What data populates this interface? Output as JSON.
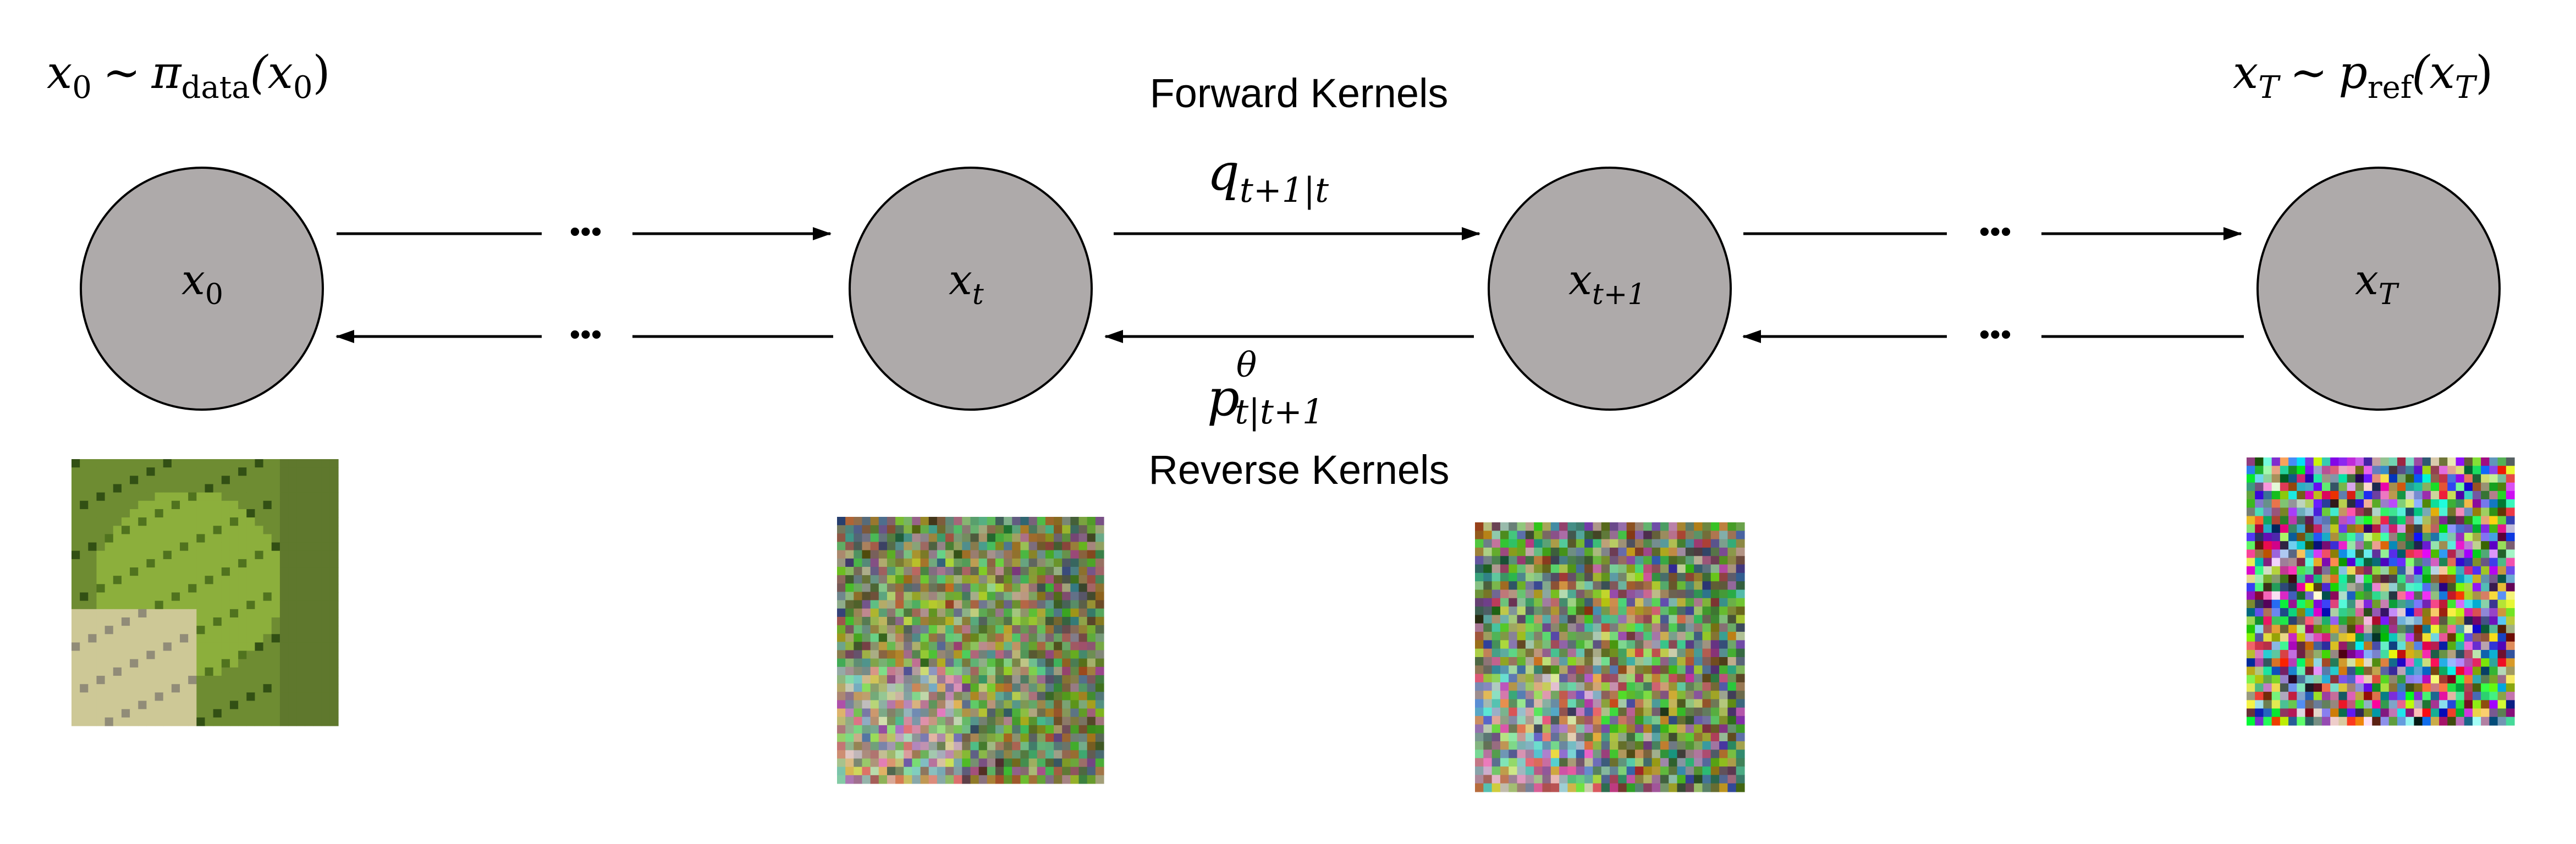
{
  "colors": {
    "node_fill": "#aeaaaa",
    "stroke": "#000000",
    "background": "#ffffff"
  },
  "top_left_annotation": {
    "var": "x",
    "var_sub": "0",
    "rel": "∼",
    "dist": "π",
    "dist_sub": "data",
    "arg": "(x",
    "arg_sub": "0",
    "arg_close": ")"
  },
  "top_right_annotation": {
    "var": "x",
    "var_sub": "T",
    "rel": "∼",
    "dist": "p",
    "dist_sub": "ref",
    "arg": "(x",
    "arg_sub": "T",
    "arg_close": ")"
  },
  "forward": {
    "title": "Forward Kernels",
    "sym": "q",
    "sub": "t+1|t"
  },
  "reverse": {
    "title": "Reverse Kernels",
    "sym": "p",
    "sup": "θ",
    "sub": "t|t+1"
  },
  "nodes": [
    {
      "var": "x",
      "sub": "0"
    },
    {
      "var": "x",
      "sub": "t"
    },
    {
      "var": "x",
      "sub": "t+1"
    },
    {
      "var": "x",
      "sub": "T"
    }
  ],
  "ellipsis": "•••",
  "images": [
    {
      "name": "frog-image-x0",
      "noise": 0.0
    },
    {
      "name": "frog-image-xt",
      "noise": 0.45
    },
    {
      "name": "frog-image-xt1",
      "noise": 0.6
    },
    {
      "name": "noise-image-xT",
      "noise": 1.0
    }
  ]
}
